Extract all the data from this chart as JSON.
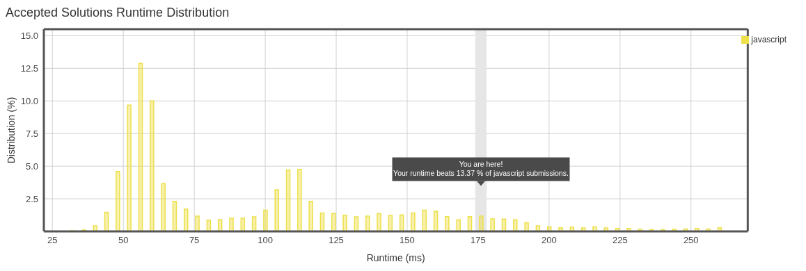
{
  "chart_data": {
    "type": "bar",
    "title": "Accepted Solutions Runtime Distribution",
    "xlabel": "Runtime (ms)",
    "ylabel": "Distribution (%)",
    "x": [
      32,
      36,
      40,
      44,
      48,
      52,
      56,
      60,
      64,
      68,
      72,
      76,
      80,
      84,
      88,
      92,
      96,
      100,
      104,
      108,
      112,
      116,
      120,
      124,
      128,
      132,
      136,
      140,
      144,
      148,
      152,
      156,
      160,
      164,
      168,
      172,
      176,
      180,
      184,
      188,
      192,
      196,
      200,
      204,
      208,
      212,
      216,
      220,
      224,
      228,
      232,
      236,
      240,
      244,
      248,
      252,
      256,
      260
    ],
    "series": [
      {
        "name": "javascript",
        "color": "#ede04a",
        "values": [
          0.05,
          0.1,
          0.42,
          1.46,
          4.6,
          9.68,
          12.88,
          10.0,
          3.66,
          2.31,
          1.7,
          1.17,
          0.86,
          0.91,
          1.01,
          1.01,
          1.12,
          1.63,
          3.19,
          4.71,
          4.75,
          2.31,
          1.41,
          1.37,
          1.24,
          1.12,
          1.17,
          1.37,
          1.22,
          1.27,
          1.41,
          1.63,
          1.55,
          1.13,
          0.89,
          1.13,
          1.17,
          0.96,
          0.94,
          0.89,
          0.66,
          0.42,
          0.34,
          0.28,
          0.32,
          0.26,
          0.34,
          0.26,
          0.23,
          0.23,
          0.16,
          0.13,
          0.13,
          0.16,
          0.18,
          0.23,
          0.18,
          0.28
        ]
      }
    ],
    "xlim": [
      22,
      270
    ],
    "xticks": [
      25,
      50,
      75,
      100,
      125,
      150,
      175,
      200,
      225,
      250
    ],
    "ylim": [
      0,
      15.5
    ],
    "yticks": [
      {
        "value": 2.5,
        "label": "2.5"
      },
      {
        "value": 5,
        "label": "5.0"
      },
      {
        "value": 7.5,
        "label": "7.5"
      },
      {
        "value": 10,
        "label": "10.0"
      },
      {
        "value": 12.5,
        "label": "12.5"
      },
      {
        "value": 15,
        "label": "15.0"
      }
    ],
    "bands": [
      {
        "axis": "x",
        "from": 174,
        "to": 178,
        "color": "#e6e6e6"
      }
    ],
    "annotations": [
      "You are here!\nYour runtime beats 13.37 % of javascript submissions."
    ],
    "grid": true,
    "legend": "top right"
  }
}
